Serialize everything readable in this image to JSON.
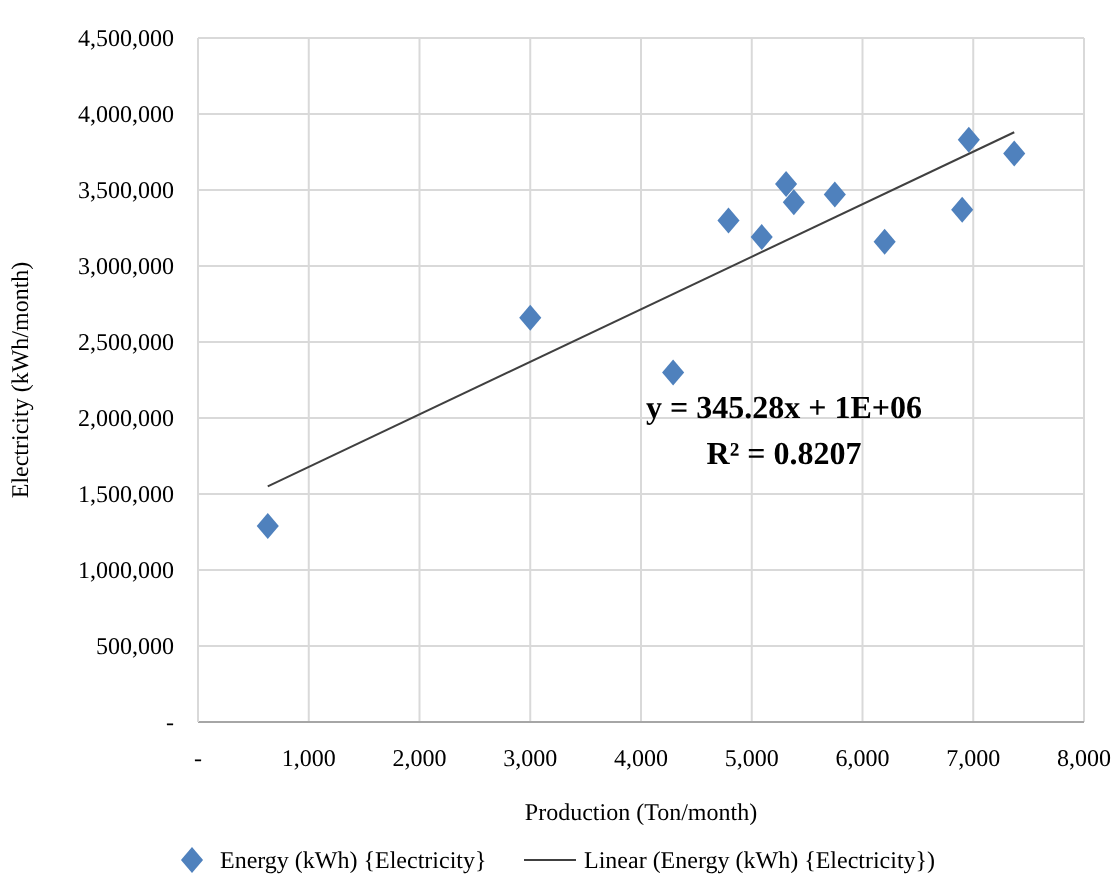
{
  "chart_data": {
    "type": "scatter",
    "xlabel": "Production (Ton/month)",
    "ylabel": "Electricity (kWh/month)",
    "xlim": [
      0,
      8000
    ],
    "xticks": [
      {
        "value": 0,
        "label": "-"
      },
      {
        "value": 1000,
        "label": "1,000"
      },
      {
        "value": 2000,
        "label": "2,000"
      },
      {
        "value": 3000,
        "label": "3,000"
      },
      {
        "value": 4000,
        "label": "4,000"
      },
      {
        "value": 5000,
        "label": "5,000"
      },
      {
        "value": 6000,
        "label": "6,000"
      },
      {
        "value": 7000,
        "label": "7,000"
      },
      {
        "value": 8000,
        "label": "8,000"
      }
    ],
    "ylim": [
      0,
      4500000
    ],
    "yticks": [
      {
        "value": 0,
        "label": "-"
      },
      {
        "value": 500000,
        "label": "500,000"
      },
      {
        "value": 1000000,
        "label": "1,000,000"
      },
      {
        "value": 1500000,
        "label": "1,500,000"
      },
      {
        "value": 2000000,
        "label": "2,000,000"
      },
      {
        "value": 2500000,
        "label": "2,500,000"
      },
      {
        "value": 3000000,
        "label": "3,000,000"
      },
      {
        "value": 3500000,
        "label": "3,500,000"
      },
      {
        "value": 4000000,
        "label": "4,000,000"
      },
      {
        "value": 4500000,
        "label": "4,500,000"
      }
    ],
    "grid": true,
    "legend": "bottom",
    "annotations": [
      "y = 345.28x + 1E+06",
      "R² = 0.8207"
    ],
    "series": [
      {
        "name": "Energy (kWh) {Electricity}",
        "marker": "diamond",
        "color": "#4f81bd",
        "x": [
          630,
          3000,
          4290,
          4790,
          5090,
          5310,
          5380,
          5750,
          6200,
          6900,
          6960,
          7370
        ],
        "values": [
          1290000,
          2660000,
          2300000,
          3300000,
          3190000,
          3540000,
          3420000,
          3470000,
          3160000,
          3370000,
          3830000,
          3740000
        ]
      },
      {
        "name": "Linear (Energy (kWh) {Electricity})",
        "type": "line",
        "marker": "none",
        "line_style": "solid",
        "color": "#404040",
        "x": [
          630,
          7370
        ],
        "values": [
          1550000,
          3880000
        ]
      }
    ]
  }
}
